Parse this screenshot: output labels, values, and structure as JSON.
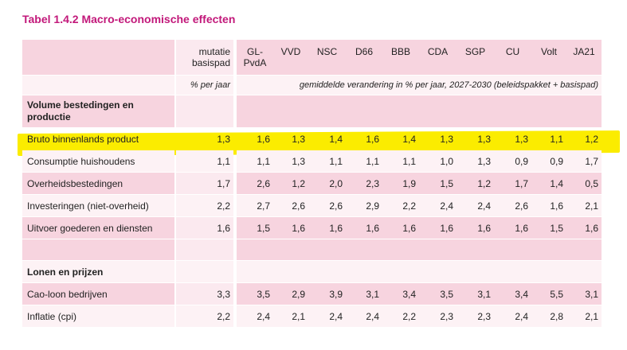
{
  "title": "Tabel 1.4.2 Macro-economische effecten",
  "header": {
    "mutatie": "mutatie basispad",
    "parties": [
      "GL-PvdA",
      "VVD",
      "NSC",
      "D66",
      "BBB",
      "CDA",
      "SGP",
      "CU",
      "Volt",
      "JA21"
    ]
  },
  "units": {
    "mutatie": "% per jaar",
    "parties": "gemiddelde verandering in % per jaar, 2027-2030 (beleidspakket + basispad)"
  },
  "sections": [
    {
      "title": "Volume bestedingen en productie",
      "rows": [
        {
          "label": "Bruto binnenlands product",
          "mutatie": "1,3",
          "values": [
            "1,6",
            "1,3",
            "1,4",
            "1,6",
            "1,4",
            "1,3",
            "1,3",
            "1,3",
            "1,1",
            "1,2"
          ]
        },
        {
          "label": "Consumptie huishoudens",
          "mutatie": "1,1",
          "values": [
            "1,1",
            "1,3",
            "1,1",
            "1,1",
            "1,1",
            "1,0",
            "1,3",
            "0,9",
            "0,9",
            "1,7"
          ]
        },
        {
          "label": "Overheidsbestedingen",
          "mutatie": "1,7",
          "values": [
            "2,6",
            "1,2",
            "2,0",
            "2,3",
            "1,9",
            "1,5",
            "1,2",
            "1,7",
            "1,4",
            "0,5"
          ]
        },
        {
          "label": "Investeringen (niet-overheid)",
          "mutatie": "2,2",
          "values": [
            "2,7",
            "2,6",
            "2,6",
            "2,9",
            "2,2",
            "2,4",
            "2,4",
            "2,6",
            "1,6",
            "2,1"
          ]
        },
        {
          "label": "Uitvoer goederen en diensten",
          "mutatie": "1,6",
          "values": [
            "1,5",
            "1,6",
            "1,6",
            "1,6",
            "1,6",
            "1,6",
            "1,6",
            "1,6",
            "1,5",
            "1,6"
          ]
        }
      ]
    },
    {
      "title": "Lonen en prijzen",
      "rows": [
        {
          "label": "Cao-loon bedrijven",
          "mutatie": "3,3",
          "values": [
            "3,5",
            "2,9",
            "3,9",
            "3,1",
            "3,4",
            "3,5",
            "3,1",
            "3,4",
            "5,5",
            "3,1"
          ]
        },
        {
          "label": "Inflatie (cpi)",
          "mutatie": "2,2",
          "values": [
            "2,4",
            "2,1",
            "2,4",
            "2,4",
            "2,2",
            "2,3",
            "2,3",
            "2,4",
            "2,8",
            "2,1"
          ]
        }
      ]
    }
  ],
  "colors": {
    "title": "#c2187a",
    "highlight": "#fbec00",
    "row_dark": "#f7d4df",
    "row_light": "#fbe9ef"
  }
}
